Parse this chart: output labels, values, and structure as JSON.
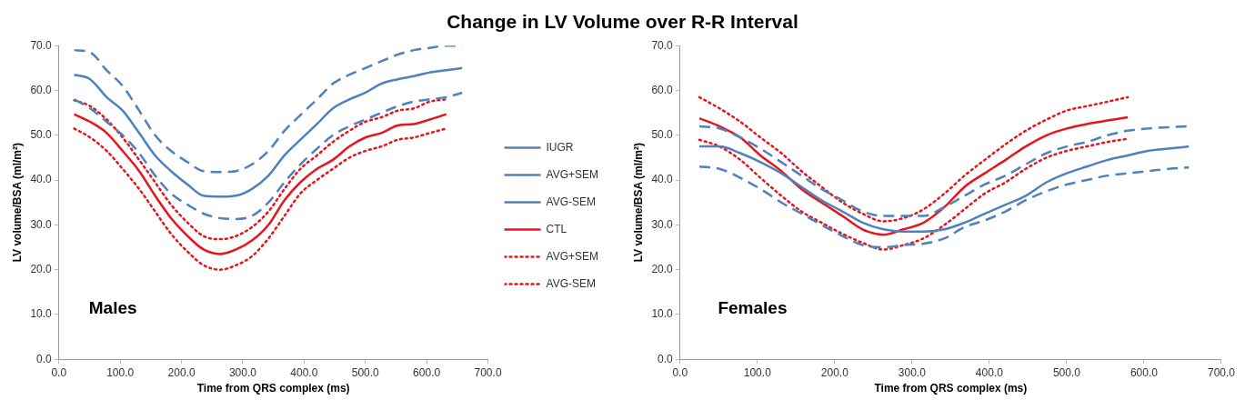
{
  "chart_data": [
    {
      "type": "line",
      "title": "Change in LV Volume over R-R Interval",
      "xlabel": "Time from QRS complex (ms)",
      "ylabel": "LV volume/BSA (ml/m²)",
      "annotations": [
        "Males"
      ],
      "x": [
        25,
        51,
        78,
        104,
        131,
        157,
        183,
        210,
        236,
        263,
        289,
        315,
        342,
        368,
        394,
        421,
        447,
        474,
        500,
        526,
        553,
        579,
        605,
        632,
        658
      ],
      "xlim": [
        0,
        700
      ],
      "xticks": [
        {
          "value": 0,
          "label": "0.0"
        },
        {
          "value": 100,
          "label": "100.0"
        },
        {
          "value": 200,
          "label": "200.0"
        },
        {
          "value": 300,
          "label": "300.0"
        },
        {
          "value": 400,
          "label": "400.0"
        },
        {
          "value": 500,
          "label": "500.0"
        },
        {
          "value": 600,
          "label": "600.0"
        },
        {
          "value": 700,
          "label": "700.0"
        }
      ],
      "ylim": [
        0,
        70
      ],
      "yticks": [
        {
          "value": 0,
          "label": "0.0"
        },
        {
          "value": 10,
          "label": "10.0"
        },
        {
          "value": 20,
          "label": "20.0"
        },
        {
          "value": 30,
          "label": "30.0"
        },
        {
          "value": 40,
          "label": "40.0"
        },
        {
          "value": 50,
          "label": "50.0"
        },
        {
          "value": 60,
          "label": "60.0"
        },
        {
          "value": 70,
          "label": "70.0"
        }
      ],
      "grid": false,
      "legend": "right",
      "marker": "none",
      "series": [
        {
          "name": "IUGR",
          "color": "#4f81bd",
          "line_style": "solid",
          "values": [
            63.5,
            62.5,
            58.5,
            55.5,
            50.5,
            45.5,
            42,
            39,
            36.5,
            36.3,
            36.5,
            38,
            41,
            45.5,
            49,
            52.5,
            56,
            58,
            59.5,
            61.5,
            62.5,
            63.2,
            64,
            64.5,
            65
          ]
        },
        {
          "name": "AVG+SEM",
          "color": "#4f81bd",
          "line_style": "dashed",
          "values": [
            69,
            68.5,
            64.5,
            61,
            55.5,
            50,
            46.5,
            44,
            42,
            41.8,
            42,
            43.5,
            46.5,
            51,
            54.5,
            58,
            61.5,
            63.5,
            65,
            66.5,
            68,
            69,
            69.5,
            70,
            70
          ]
        },
        {
          "name": "AVG-SEM",
          "color": "#4f81bd",
          "line_style": "dashed",
          "values": [
            58,
            56,
            53,
            50,
            46,
            41,
            37,
            34.5,
            32.5,
            31.5,
            31.3,
            32,
            35,
            39.5,
            43.5,
            47,
            50,
            52,
            53.5,
            55,
            56.5,
            57.5,
            58,
            58.5,
            59.5
          ]
        },
        {
          "name": "CTL",
          "color": "#e8141b",
          "line_style": "solid",
          "values": [
            54.7,
            53,
            50.5,
            46.5,
            42,
            36.5,
            31.5,
            27.5,
            24.5,
            23.5,
            24.5,
            26.5,
            30,
            35.5,
            39.5,
            42.5,
            44.5,
            47.5,
            49.5,
            50.5,
            52.2,
            52.5,
            53.5,
            54.7,
            null
          ]
        },
        {
          "name": "AVG+SEM",
          "color": "#e8141b",
          "line_style": "dotted",
          "values": [
            57.8,
            56.5,
            53.5,
            49.5,
            44.5,
            39.5,
            34.5,
            30.5,
            27.5,
            26.8,
            27.5,
            29.5,
            33,
            38,
            42.5,
            45.5,
            48.5,
            51,
            53,
            54,
            55.5,
            56,
            57.5,
            58,
            null
          ]
        },
        {
          "name": "AVG-SEM",
          "color": "#e8141b",
          "line_style": "dotted",
          "values": [
            51.5,
            49.5,
            46.5,
            42.5,
            38,
            33,
            28,
            24,
            21,
            20,
            21,
            23,
            27,
            32,
            37,
            40,
            42.5,
            45,
            46.5,
            47.5,
            49,
            49.5,
            50.5,
            51.5,
            null
          ]
        }
      ]
    },
    {
      "type": "line",
      "xlabel": "Time from QRS complex (ms)",
      "ylabel": "LV volume/BSA (ml/m²)",
      "annotations": [
        "Females"
      ],
      "x": [
        25,
        51,
        78,
        104,
        131,
        157,
        183,
        210,
        236,
        263,
        289,
        315,
        342,
        368,
        394,
        421,
        447,
        474,
        500,
        526,
        553,
        579,
        605,
        632,
        658
      ],
      "xlim": [
        0,
        700
      ],
      "xticks": [
        {
          "value": 0,
          "label": "0.0"
        },
        {
          "value": 100,
          "label": "100.0"
        },
        {
          "value": 200,
          "label": "200.0"
        },
        {
          "value": 300,
          "label": "300.0"
        },
        {
          "value": 400,
          "label": "400.0"
        },
        {
          "value": 500,
          "label": "500.0"
        },
        {
          "value": 600,
          "label": "600.0"
        },
        {
          "value": 700,
          "label": "700.0"
        }
      ],
      "ylim": [
        0,
        70
      ],
      "yticks": [
        {
          "value": 0,
          "label": "0.0"
        },
        {
          "value": 10,
          "label": "10.0"
        },
        {
          "value": 20,
          "label": "20.0"
        },
        {
          "value": 30,
          "label": "30.0"
        },
        {
          "value": 40,
          "label": "40.0"
        },
        {
          "value": 50,
          "label": "50.0"
        },
        {
          "value": 60,
          "label": "60.0"
        },
        {
          "value": 70,
          "label": "70.0"
        }
      ],
      "grid": false,
      "legend": false,
      "marker": "none",
      "series": [
        {
          "color": "#4f81bd",
          "line_style": "solid",
          "values": [
            47.5,
            47.5,
            46,
            44,
            41.5,
            38.5,
            35.5,
            33,
            30.5,
            29,
            28.5,
            28.5,
            29,
            30.5,
            32.5,
            34.5,
            36.5,
            39.5,
            41.5,
            43,
            44.5,
            45.5,
            46.5,
            47,
            47.5
          ]
        },
        {
          "color": "#4f81bd",
          "line_style": "dashed",
          "values": [
            52,
            51.5,
            49.5,
            47,
            44,
            41,
            38,
            35.5,
            33,
            32,
            32,
            32,
            34,
            36.5,
            39,
            41,
            43.5,
            46,
            47.5,
            48.5,
            50,
            51,
            51.5,
            51.8,
            52
          ]
        },
        {
          "color": "#4f81bd",
          "line_style": "dashed",
          "values": [
            43,
            42.5,
            40.5,
            38,
            35,
            32.5,
            30,
            27.5,
            25.5,
            25,
            25.5,
            25.8,
            27,
            29.5,
            31,
            33,
            35.5,
            37.5,
            39,
            40,
            41,
            41.5,
            42,
            42.5,
            42.8
          ]
        },
        {
          "color": "#e8141b",
          "line_style": "solid",
          "values": [
            53.8,
            52,
            49.5,
            45.5,
            42,
            38,
            35,
            32,
            29,
            27.8,
            29,
            30.5,
            34,
            38.5,
            41.5,
            44.5,
            47.5,
            50,
            51.5,
            52.5,
            53.3,
            54,
            null,
            null,
            null
          ]
        },
        {
          "color": "#e8141b",
          "line_style": "dotted",
          "values": [
            58.5,
            56,
            53,
            49.5,
            46,
            42,
            38.5,
            35,
            32.5,
            30.8,
            31.5,
            33.5,
            37,
            41,
            44.5,
            48,
            51,
            53.5,
            55.5,
            56.5,
            57.5,
            58.5,
            null,
            null,
            null
          ]
        },
        {
          "color": "#e8141b",
          "line_style": "dotted",
          "values": [
            49,
            47.5,
            44.5,
            40.5,
            36.5,
            33,
            30.5,
            28,
            26,
            24.5,
            25.5,
            27,
            30,
            33.5,
            37,
            39.5,
            42.5,
            45,
            46.5,
            47.5,
            48.5,
            49.2,
            null,
            null,
            null
          ]
        }
      ]
    }
  ]
}
